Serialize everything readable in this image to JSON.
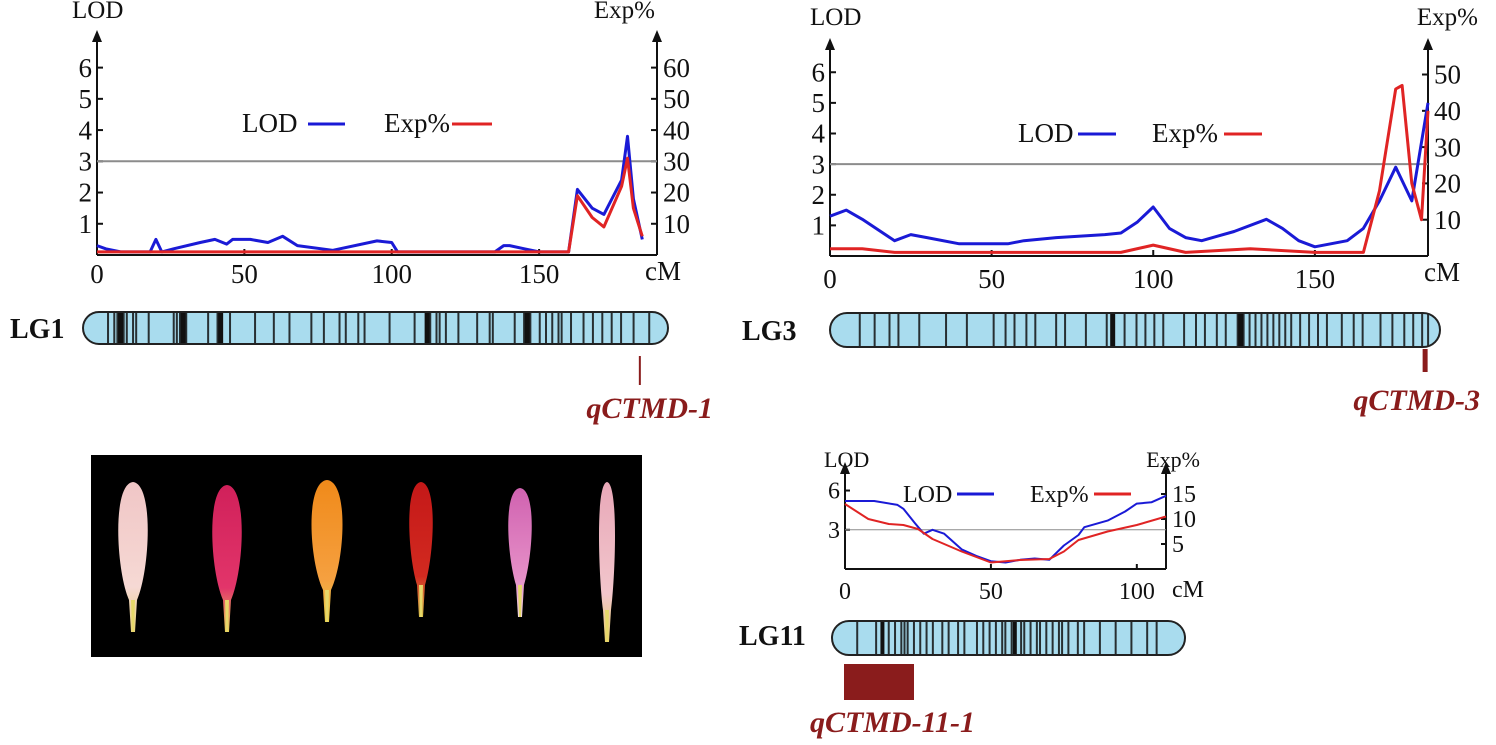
{
  "colors": {
    "lod": "#1a1ad6",
    "exp": "#e02424",
    "chrom_fill": "#a9dcee",
    "marker": "#111111",
    "qtl": "#8a1c1c",
    "threshold": "#8c8c8c",
    "photo_bg": "#000000"
  },
  "chart_data": [
    {
      "type": "line",
      "chromosome": "LG1",
      "qtl_name": "qCTMD-1",
      "qtl_interval": [
        178,
        178
      ],
      "length": 185,
      "lod_label": "LOD",
      "exp_label": "Exp%",
      "xlabel": "cM",
      "legend": {
        "lod": "LOD",
        "exp": "Exp%"
      },
      "xlim": [
        0,
        190
      ],
      "xticks": [
        "0",
        "50",
        "100",
        "150"
      ],
      "xtick_values": [
        0,
        50,
        100,
        150
      ],
      "ylim": [
        0,
        6.5
      ],
      "yticks": [
        "1",
        "2",
        "3",
        "4",
        "5",
        "6"
      ],
      "ytick_values": [
        1,
        2,
        3,
        4,
        5,
        6
      ],
      "y2lim": [
        0,
        65
      ],
      "y2ticks": [
        "10",
        "20",
        "30",
        "40",
        "50",
        "60"
      ],
      "y2tick_values": [
        10,
        20,
        30,
        40,
        50,
        60
      ],
      "threshold": 3,
      "series": [
        {
          "name": "LOD",
          "x": [
            0,
            3,
            8,
            18,
            20,
            22,
            26,
            35,
            40,
            44,
            46,
            52,
            58,
            63,
            68,
            80,
            95,
            100,
            102,
            110,
            120,
            135,
            138,
            140,
            145,
            150,
            155,
            160,
            163,
            168,
            172,
            178,
            180,
            182,
            185
          ],
          "y": [
            0.3,
            0.2,
            0.1,
            0.1,
            0.5,
            0.1,
            0.2,
            0.4,
            0.5,
            0.35,
            0.5,
            0.5,
            0.4,
            0.6,
            0.3,
            0.15,
            0.45,
            0.4,
            0.1,
            0.1,
            0.1,
            0.1,
            0.3,
            0.3,
            0.2,
            0.1,
            0.1,
            0.1,
            2.1,
            1.5,
            1.3,
            2.4,
            3.8,
            1.8,
            0.5
          ]
        },
        {
          "name": "Exp%",
          "x": [
            0,
            3,
            20,
            40,
            60,
            80,
            100,
            120,
            140,
            155,
            160,
            163,
            168,
            172,
            178,
            180,
            182,
            185
          ],
          "y": [
            1,
            1,
            1,
            1,
            1,
            1,
            1,
            1,
            1,
            1,
            1,
            19,
            12,
            9,
            22,
            31,
            15,
            6
          ]
        }
      ]
    },
    {
      "type": "line",
      "chromosome": "LG3",
      "qtl_name": "qCTMD-3",
      "qtl_interval": [
        200,
        200
      ],
      "length": 203,
      "lod_label": "LOD",
      "exp_label": "Exp%",
      "xlabel": "cM",
      "legend": {
        "lod": "LOD",
        "exp": "Exp%"
      },
      "xlim": [
        0,
        185
      ],
      "xticks": [
        "0",
        "50",
        "100",
        "150"
      ],
      "xtick_values": [
        0,
        50,
        100,
        150
      ],
      "ylim": [
        0,
        6.4
      ],
      "yticks": [
        "1",
        "2",
        "3",
        "4",
        "5",
        "6"
      ],
      "ytick_values": [
        1,
        2,
        3,
        4,
        5,
        6
      ],
      "y2lim": [
        0,
        54
      ],
      "y2ticks": [
        "10",
        "20",
        "30",
        "40",
        "50"
      ],
      "y2tick_values": [
        10,
        20,
        30,
        40,
        50
      ],
      "threshold": 3,
      "series": [
        {
          "name": "LOD",
          "x": [
            0,
            5,
            10,
            20,
            25,
            30,
            40,
            52,
            55,
            60,
            70,
            85,
            90,
            95,
            100,
            105,
            110,
            115,
            120,
            125,
            135,
            140,
            145,
            150,
            160,
            165,
            170,
            175,
            180,
            185
          ],
          "y": [
            1.3,
            1.5,
            1.2,
            0.5,
            0.7,
            0.6,
            0.4,
            0.4,
            0.4,
            0.5,
            0.6,
            0.7,
            0.75,
            1.1,
            1.6,
            0.9,
            0.6,
            0.5,
            0.65,
            0.8,
            1.2,
            0.9,
            0.5,
            0.3,
            0.5,
            0.9,
            1.8,
            2.9,
            1.8,
            5.0
          ]
        },
        {
          "name": "Exp%",
          "x": [
            0,
            10,
            20,
            30,
            50,
            70,
            90,
            100,
            110,
            130,
            150,
            165,
            170,
            175,
            177,
            180,
            183,
            185
          ],
          "y": [
            2,
            2,
            1,
            1,
            1,
            1,
            1,
            3,
            1,
            2,
            1,
            1,
            18,
            46,
            47,
            20,
            10,
            40
          ]
        }
      ]
    },
    {
      "type": "line",
      "chromosome": "LG11",
      "qtl_name": "qCTMD-11-1",
      "qtl_interval": [
        0,
        22
      ],
      "length": 110,
      "lod_label": "LOD",
      "exp_label": "Exp%",
      "xlabel": "cM",
      "legend": {
        "lod": "LOD",
        "exp": "Exp%"
      },
      "xlim": [
        0,
        110
      ],
      "xticks": [
        "0",
        "50",
        "100"
      ],
      "xtick_values": [
        0,
        50,
        100
      ],
      "ylim": [
        0,
        6.5
      ],
      "yticks": [
        "3",
        "6"
      ],
      "ytick_values": [
        3,
        6
      ],
      "y2lim": [
        0,
        17
      ],
      "y2ticks": [
        "5",
        "10",
        "15"
      ],
      "y2tick_values": [
        5,
        10,
        15
      ],
      "threshold": 3,
      "series": [
        {
          "name": "LOD",
          "x": [
            0,
            10,
            18,
            20,
            24,
            27,
            30,
            34,
            40,
            45,
            50,
            55,
            60,
            65,
            70,
            75,
            80,
            82,
            90,
            96,
            100,
            105,
            110
          ],
          "y": [
            5.2,
            5.2,
            4.9,
            4.6,
            3.5,
            2.7,
            3.0,
            2.7,
            1.5,
            1.0,
            0.6,
            0.5,
            0.7,
            0.8,
            0.7,
            1.8,
            2.6,
            3.2,
            3.7,
            4.4,
            5.0,
            5.1,
            5.6
          ]
        },
        {
          "name": "Exp%",
          "x": [
            0,
            8,
            15,
            20,
            25,
            30,
            40,
            50,
            60,
            70,
            75,
            80,
            90,
            100,
            110
          ],
          "y": [
            13,
            10,
            9,
            8.8,
            8,
            6,
            3.5,
            1.3,
            1.8,
            2,
            3.5,
            5.8,
            7.5,
            8.8,
            10.5
          ]
        }
      ]
    }
  ],
  "chromosomes": [
    {
      "label": "LG1",
      "markers": [
        8,
        10,
        11,
        13,
        14,
        16,
        17,
        21,
        29,
        30,
        31,
        33,
        40,
        43,
        47,
        55,
        61,
        66,
        73,
        77,
        82,
        84,
        88,
        90,
        98,
        106,
        111,
        113,
        114,
        116,
        120,
        126,
        130,
        131,
        138,
        141,
        143,
        146,
        148,
        150,
        152,
        153,
        156,
        160,
        163,
        166,
        169,
        172,
        176,
        181
      ],
      "thick_markers": [
        12,
        32,
        44,
        110,
        142
      ]
    },
    {
      "label": "LG3",
      "markers": [
        10,
        15,
        20,
        23,
        30,
        39,
        46,
        55,
        59,
        62,
        66,
        69,
        76,
        79,
        86,
        93,
        99,
        103,
        106,
        109,
        112,
        119,
        123,
        126,
        130,
        133,
        137,
        139,
        141,
        143,
        145,
        147,
        149,
        151,
        153,
        155,
        158,
        161,
        164,
        167,
        172,
        176,
        179,
        185,
        189,
        193,
        196,
        199,
        201
      ],
      "thick_markers": [
        95,
        138
      ]
    },
    {
      "label": "LG11",
      "markers": [
        8,
        14,
        16,
        18,
        20,
        22,
        23,
        24,
        26,
        28,
        30,
        32,
        35,
        37,
        40,
        42,
        46,
        48,
        50,
        52,
        54,
        55,
        57,
        58,
        60,
        61,
        63,
        65,
        66,
        68,
        70,
        72,
        73,
        75,
        78,
        80,
        85,
        90,
        95,
        100,
        103
      ],
      "thick_markers": [
        16,
        58
      ]
    }
  ],
  "photo": {
    "petals": [
      {
        "name": "pale-pink",
        "tip": "#f0c6c6",
        "body": "#f6d9d4",
        "base": "#e9d07a"
      },
      {
        "name": "magenta",
        "tip": "#d0205a",
        "body": "#e2356a",
        "base": "#e8d25a"
      },
      {
        "name": "orange",
        "tip": "#f08a1a",
        "body": "#f5a040",
        "base": "#e8d04a"
      },
      {
        "name": "red",
        "tip": "#c41818",
        "body": "#d22a20",
        "base": "#d8c34c"
      },
      {
        "name": "pink",
        "tip": "#d062b0",
        "body": "#e690c8",
        "base": "#eed6e2"
      },
      {
        "name": "light-pink",
        "tip": "#e8a8b8",
        "body": "#f2c6cc",
        "base": "#e8d06a"
      }
    ]
  }
}
